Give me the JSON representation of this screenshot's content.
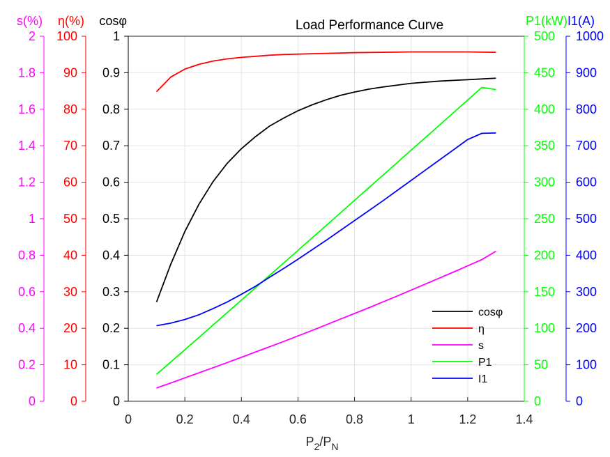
{
  "chart_data": {
    "type": "line",
    "title": "Load Performance Curve",
    "xlabel": {
      "base": "P",
      "sub1": "2",
      "slash": "/P",
      "sub2": "N"
    },
    "xlim": [
      0,
      1.4
    ],
    "x_ticks": [
      "0",
      "0.2",
      "0.4",
      "0.6",
      "0.8",
      "1",
      "1.2",
      "1.4"
    ],
    "grid": true,
    "legend_position": "bottom-right",
    "axes": [
      {
        "id": "cos",
        "label": "cosφ",
        "ylim": [
          0,
          1
        ],
        "ticks": [
          "0",
          "0.1",
          "0.2",
          "0.3",
          "0.4",
          "0.5",
          "0.6",
          "0.7",
          "0.8",
          "0.9",
          "1"
        ],
        "color": "#000000",
        "side": "left"
      },
      {
        "id": "eta",
        "label": "η(%)",
        "ylim": [
          0,
          100
        ],
        "ticks": [
          "0",
          "10",
          "20",
          "30",
          "40",
          "50",
          "60",
          "70",
          "80",
          "90",
          "100"
        ],
        "color": "#ff0000",
        "side": "left"
      },
      {
        "id": "s",
        "label": "s(%)",
        "ylim": [
          0,
          2
        ],
        "ticks": [
          "0",
          "0.2",
          "0.4",
          "0.6",
          "0.8",
          "1",
          "1.2",
          "1.4",
          "1.6",
          "1.8",
          "2"
        ],
        "color": "#ff00ff",
        "side": "left"
      },
      {
        "id": "p1",
        "label": "P1(kW)",
        "ylim": [
          0,
          500
        ],
        "ticks": [
          "0",
          "50",
          "100",
          "150",
          "200",
          "250",
          "300",
          "350",
          "400",
          "450",
          "500"
        ],
        "color": "#00ff00",
        "side": "right"
      },
      {
        "id": "i1",
        "label": "I1(A)",
        "ylim": [
          0,
          1000
        ],
        "ticks": [
          "0",
          "100",
          "200",
          "300",
          "400",
          "500",
          "600",
          "700",
          "800",
          "900",
          "1000"
        ],
        "color": "#0000ff",
        "side": "right"
      }
    ],
    "x": [
      0.1,
      0.15,
      0.2,
      0.25,
      0.3,
      0.35,
      0.4,
      0.45,
      0.5,
      0.55,
      0.6,
      0.65,
      0.7,
      0.75,
      0.8,
      0.85,
      0.9,
      0.95,
      1.0,
      1.05,
      1.1,
      1.15,
      1.2,
      1.25,
      1.3
    ],
    "series": [
      {
        "name": "cosφ",
        "axis": "cos",
        "color": "#000000",
        "values": [
          0.272,
          0.375,
          0.465,
          0.54,
          0.602,
          0.652,
          0.692,
          0.725,
          0.754,
          0.776,
          0.796,
          0.812,
          0.826,
          0.838,
          0.847,
          0.855,
          0.861,
          0.866,
          0.871,
          0.874,
          0.877,
          0.879,
          0.881,
          0.883,
          0.885
        ]
      },
      {
        "name": "η",
        "axis": "eta",
        "color": "#ff0000",
        "values": [
          84.8,
          88.8,
          91.0,
          92.3,
          93.2,
          93.8,
          94.2,
          94.5,
          94.8,
          95.0,
          95.1,
          95.2,
          95.3,
          95.4,
          95.5,
          95.55,
          95.6,
          95.65,
          95.7,
          95.7,
          95.7,
          95.7,
          95.7,
          95.65,
          95.6
        ]
      },
      {
        "name": "s",
        "axis": "s",
        "color": "#ff00ff",
        "values": [
          0.073,
          0.1,
          0.128,
          0.156,
          0.184,
          0.212,
          0.241,
          0.27,
          0.299,
          0.328,
          0.358,
          0.388,
          0.419,
          0.45,
          0.481,
          0.512,
          0.544,
          0.576,
          0.609,
          0.642,
          0.675,
          0.708,
          0.742,
          0.776,
          0.822
        ]
      },
      {
        "name": "P1",
        "axis": "p1",
        "color": "#00ff00",
        "values": [
          36.9,
          53.7,
          70.6,
          87.5,
          104.5,
          121.5,
          138.5,
          155.5,
          172.5,
          189.6,
          206.7,
          223.8,
          240.8,
          258.0,
          275.2,
          292.4,
          309.5,
          326.7,
          343.9,
          361.0,
          378.2,
          395.4,
          412.6,
          429.8,
          427.0
        ]
      },
      {
        "name": "I1",
        "axis": "i1",
        "color": "#0000ff",
        "values": [
          207,
          214,
          224,
          237,
          254,
          272,
          293,
          315,
          340,
          364,
          389,
          415,
          441,
          468,
          495,
          522,
          549,
          577,
          605,
          633,
          661,
          689,
          717,
          734,
          735
        ]
      }
    ]
  }
}
